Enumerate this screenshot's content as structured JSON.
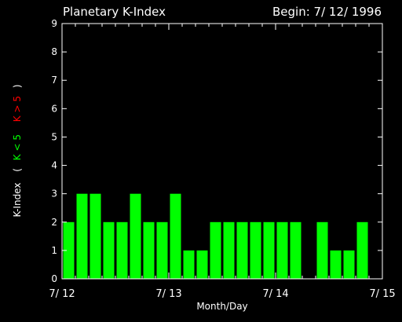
{
  "chart_data": {
    "type": "bar",
    "title": "Planetary K-Index",
    "begin_label": "Begin: 7/ 12/ 1996",
    "xlabel": "Month/Day",
    "ylabel": {
      "main": "K-Index",
      "open_paren": "(",
      "low_label": "K < 5",
      "high_label": "K > 5",
      "close_paren": ")"
    },
    "ylim": [
      0,
      9
    ],
    "yticks": [
      "0",
      "1",
      "2",
      "3",
      "4",
      "5",
      "6",
      "7",
      "8",
      "9"
    ],
    "xlim": [
      0,
      24
    ],
    "xticks": [
      {
        "label": "7/ 12",
        "at": 0
      },
      {
        "label": "7/ 13",
        "at": 8
      },
      {
        "label": "7/ 14",
        "at": 16
      },
      {
        "label": "7/ 15",
        "at": 24
      }
    ],
    "values": [
      2,
      3,
      3,
      2,
      2,
      3,
      2,
      2,
      3,
      1,
      1,
      2,
      2,
      2,
      2,
      2,
      2,
      2,
      0,
      2,
      1,
      1,
      2
    ],
    "colors": {
      "low": "#00ff00",
      "high": "#ff0000",
      "axis": "#ffffff",
      "background": "#000000"
    }
  }
}
